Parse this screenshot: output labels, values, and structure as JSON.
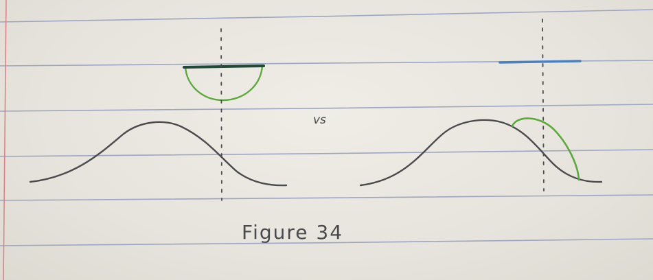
{
  "figure": {
    "vs_label": "vs",
    "caption": "Figure 34"
  },
  "ink_colors": {
    "pencil": "#4b4b4f",
    "green": "#5aaa3a",
    "dark_green": "#1f4a3a",
    "blue": "#4a7fc4",
    "ruled_line": "#9aa6c4",
    "margin_line": "#e07a86"
  }
}
